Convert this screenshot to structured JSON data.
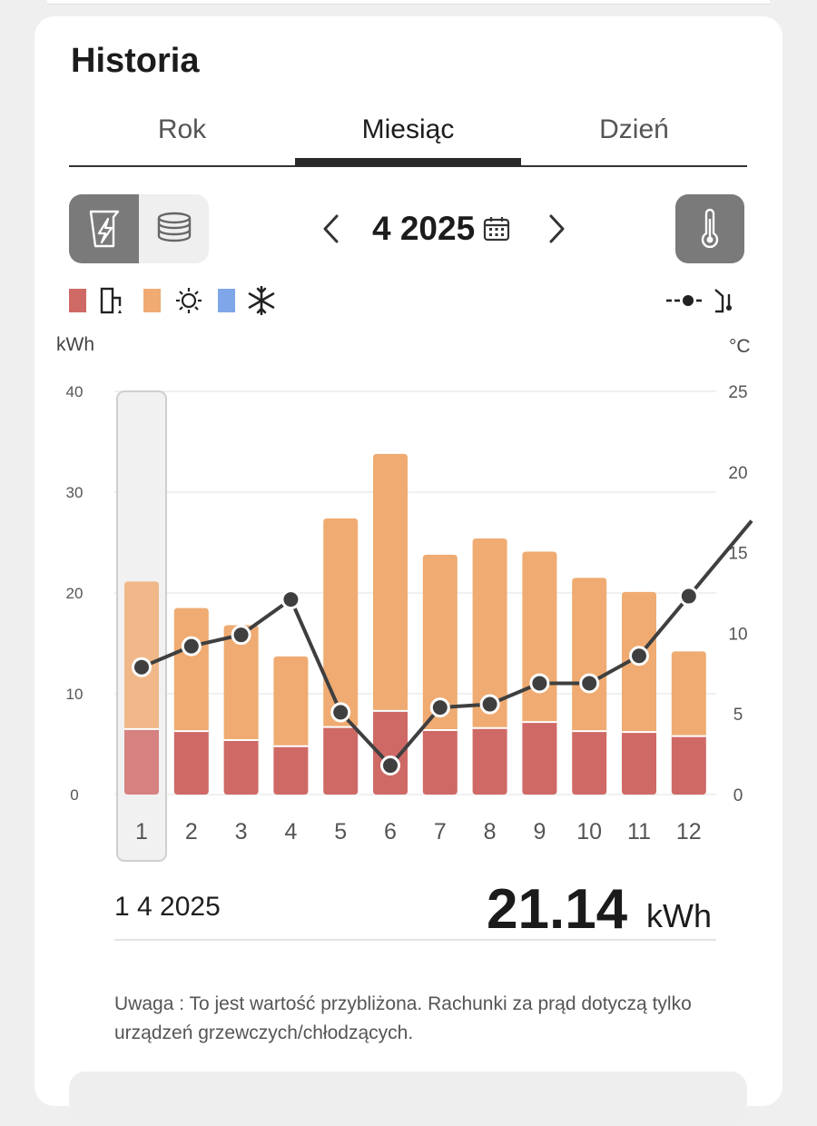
{
  "header": {
    "title": "Historia"
  },
  "tabs": [
    {
      "label": "Rok",
      "active": false
    },
    {
      "label": "Miesiąc",
      "active": true
    },
    {
      "label": "Dzień",
      "active": false
    }
  ],
  "toolbar": {
    "energy_icon": "lightning-icon",
    "cost_icon": "coins-stack-icon",
    "prev_icon": "chevron-left-icon",
    "next_icon": "chevron-right-icon",
    "period": "4 2025",
    "calendar_icon": "calendar-icon",
    "temperature_icon": "thermometer-icon"
  },
  "legend": {
    "items": [
      {
        "icon": "water-tap-icon",
        "color": "#cf6966"
      },
      {
        "icon": "sun-icon",
        "color": "#efab72"
      },
      {
        "icon": "snowflake-icon",
        "color": "#7fa6e8"
      }
    ],
    "temperature_icon": "outdoor-temperature-icon"
  },
  "chart": {
    "left_unit": "kWh",
    "right_unit": "°C"
  },
  "chart_data": {
    "type": "bar",
    "stacked": true,
    "categories": [
      "1",
      "2",
      "3",
      "4",
      "5",
      "6",
      "7",
      "8",
      "9",
      "10",
      "11",
      "12"
    ],
    "series": [
      {
        "color": "#cf6966",
        "values": [
          6.5,
          6.3,
          5.4,
          4.8,
          6.7,
          8.3,
          6.4,
          6.6,
          7.2,
          6.3,
          6.2,
          5.8
        ]
      },
      {
        "color": "#efab72",
        "values": [
          14.64,
          12.2,
          11.4,
          8.9,
          20.7,
          25.5,
          17.4,
          18.8,
          16.9,
          15.2,
          13.9,
          8.4
        ]
      }
    ],
    "line": {
      "color": "#3f3f3f",
      "axis": "right",
      "values": [
        7.9,
        9.2,
        9.9,
        12.1,
        5.1,
        1.8,
        5.4,
        5.6,
        6.9,
        6.9,
        8.6,
        12.3
      ]
    },
    "ylim_left": [
      0,
      40
    ],
    "yticks_left": [
      0,
      10,
      20,
      30,
      40
    ],
    "ylim_right": [
      0,
      25
    ],
    "yticks_right": [
      0,
      5,
      10,
      15,
      20,
      25
    ],
    "selected_index": 0,
    "grid": true
  },
  "selection": {
    "date": "1 4 2025",
    "value": "21.14",
    "unit": "kWh"
  },
  "note": "Uwaga : To jest wartość przybliżona. Rachunki za prąd dotyczą tylko urządzeń grzewczych/chłodzących."
}
